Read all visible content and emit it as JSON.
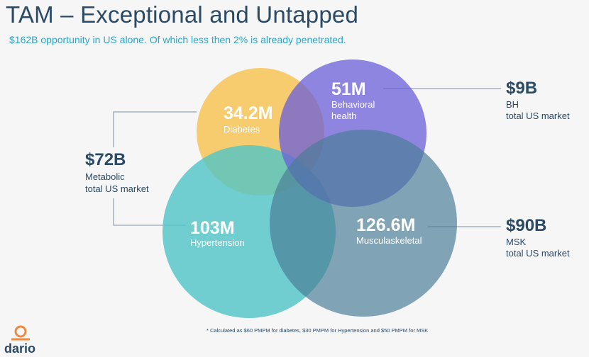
{
  "header": {
    "title": "TAM – Exceptional and Untapped",
    "subtitle": "$162B opportunity in US alone. Of which less then 2% is already penetrated."
  },
  "venn": {
    "diabetes": {
      "value": "34.2M",
      "label": "Diabetes",
      "color": "#f6c250"
    },
    "behavioral": {
      "value": "51M",
      "label_line1": "Behavioral",
      "label_line2": "health",
      "color": "#7b6ee0"
    },
    "hypertension": {
      "value": "103M",
      "label": "Hypertension",
      "color": "#4fc4c6"
    },
    "msk": {
      "value": "126.6M",
      "label": "Musculaskeletal",
      "color": "#5a8ea6"
    }
  },
  "markets": {
    "metabolic": {
      "amount": "$72B",
      "name": "Metabolic",
      "sub": "total US market"
    },
    "bh": {
      "amount": "$9B",
      "name": "BH",
      "sub": "total US market"
    },
    "msk": {
      "amount": "$90B",
      "name": "MSK",
      "sub": "total US market"
    }
  },
  "footnote": "* Calculated as $60 PMPM for diabetes, $30 PMPM for Hypertension and $50 PMPM for MSK",
  "brand": {
    "name": "dario",
    "color": "#f08a3c"
  }
}
